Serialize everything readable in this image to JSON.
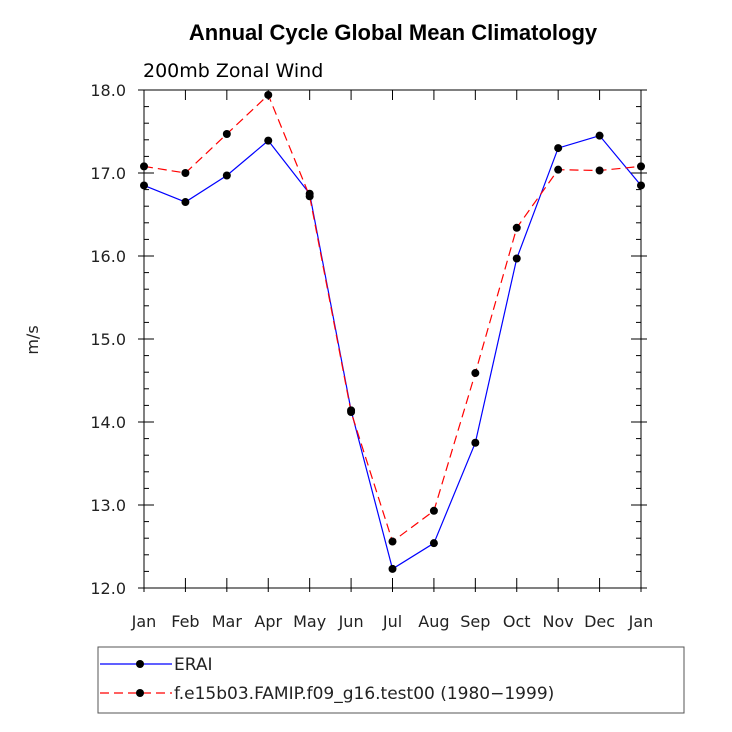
{
  "chart_data": {
    "type": "line",
    "title": "Annual Cycle Global Mean Climatology",
    "subtitle": "200mb Zonal Wind",
    "xlabel": "",
    "ylabel": "m/s",
    "categories": [
      "Jan",
      "Feb",
      "Mar",
      "Apr",
      "May",
      "Jun",
      "Jul",
      "Aug",
      "Sep",
      "Oct",
      "Nov",
      "Dec",
      "Jan"
    ],
    "ylim": [
      12.0,
      18.0
    ],
    "yticks": [
      "12.0",
      "13.0",
      "14.0",
      "15.0",
      "16.0",
      "17.0",
      "18.0"
    ],
    "grid": false,
    "legend_position": "bottom",
    "series": [
      {
        "name": "ERAI",
        "color": "#0000ff",
        "dash": "solid",
        "values": [
          16.85,
          16.65,
          16.97,
          17.39,
          16.75,
          14.14,
          12.23,
          12.54,
          13.75,
          15.97,
          17.3,
          17.45,
          16.85
        ]
      },
      {
        "name": "f.e15b03.FAMIP.f09_g16.test00 (1980−1999)",
        "color": "#ff0000",
        "dash": "dashed",
        "values": [
          17.08,
          17.0,
          17.47,
          17.94,
          16.72,
          14.12,
          12.56,
          12.93,
          14.59,
          16.34,
          17.04,
          17.03,
          17.08
        ]
      }
    ]
  }
}
